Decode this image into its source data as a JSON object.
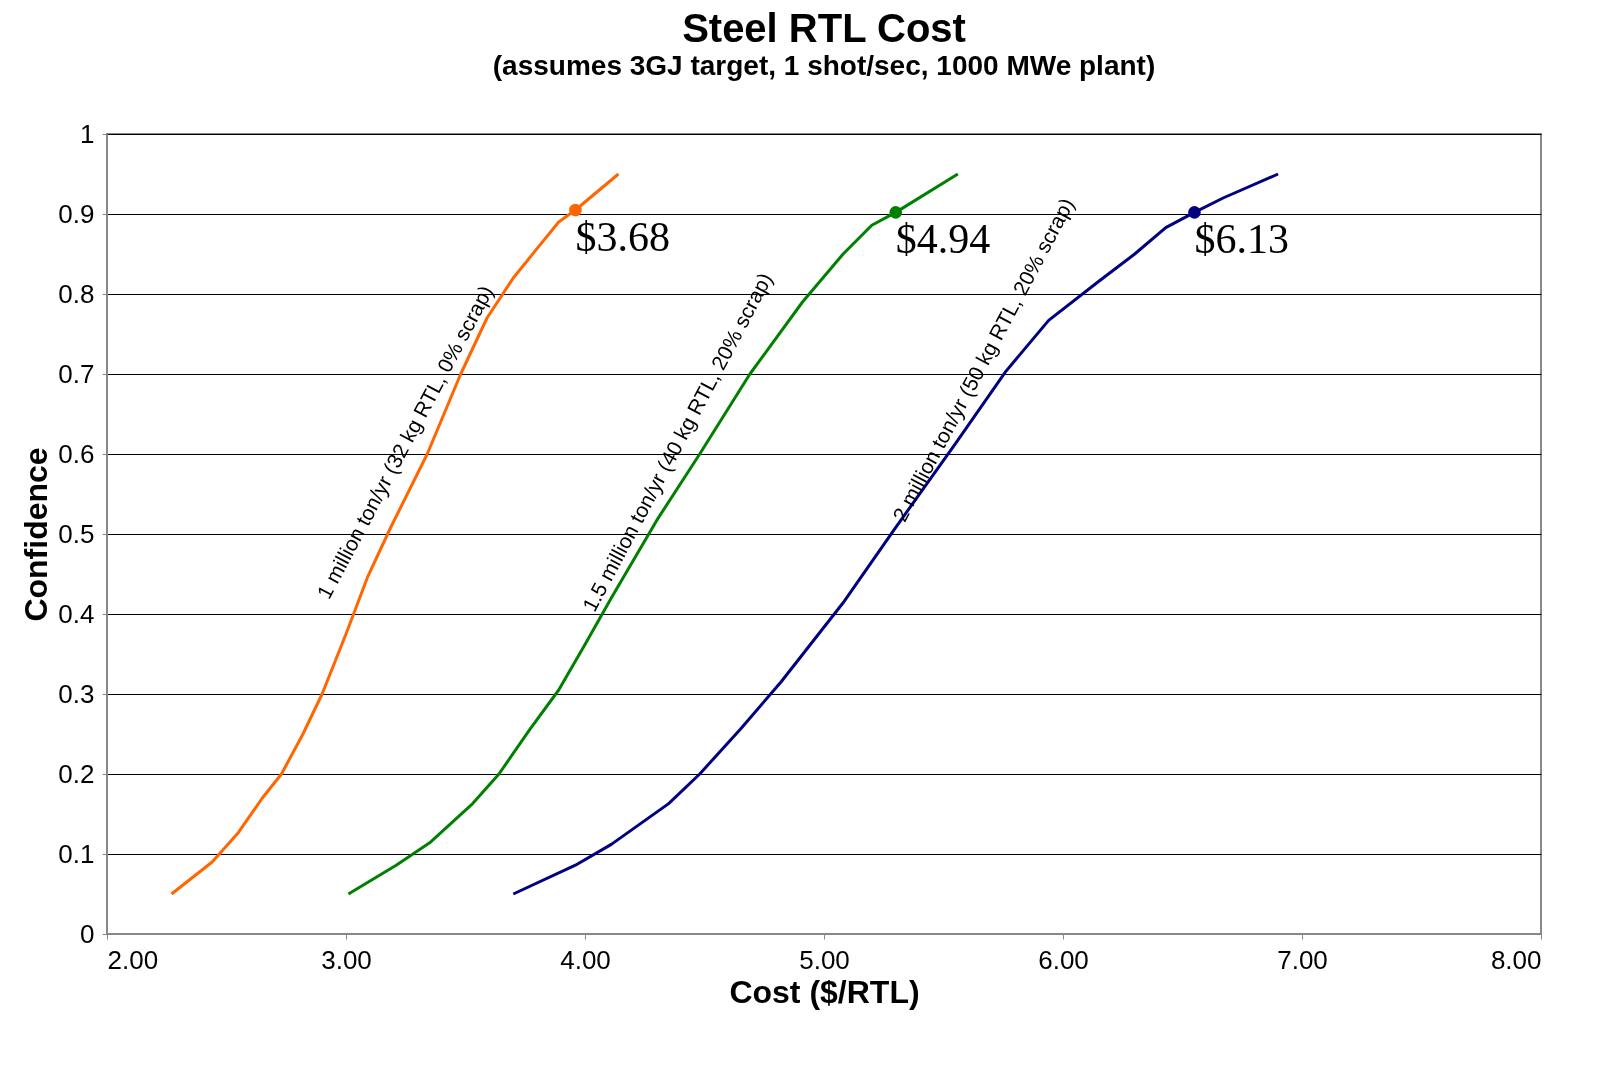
{
  "chart_data": {
    "type": "line",
    "title": "Steel RTL Cost",
    "subtitle": "(assumes 3GJ target, 1 shot/sec, 1000 MWe plant)",
    "xlabel": "Cost ($/RTL)",
    "ylabel": "Confidence",
    "xlim": [
      2,
      8
    ],
    "xticks": [
      {
        "value": 2,
        "label": "2.00"
      },
      {
        "value": 3,
        "label": "3.00"
      },
      {
        "value": 4,
        "label": "4.00"
      },
      {
        "value": 5,
        "label": "5.00"
      },
      {
        "value": 6,
        "label": "6.00"
      },
      {
        "value": 7,
        "label": "7.00"
      },
      {
        "value": 8,
        "label": "8.00"
      }
    ],
    "ylim": [
      0,
      1
    ],
    "yticks": [
      0,
      0.1,
      0.2,
      0.3,
      0.4,
      0.5,
      0.6,
      0.7,
      0.8,
      0.9,
      1
    ],
    "grid": "y",
    "marker": "none",
    "line_style": "solid",
    "series": [
      {
        "name": "1 million ton/yr (32 kg RTL, 0% scrap)",
        "color": "#ff6600",
        "x": [
          2.27,
          2.44,
          2.55,
          2.65,
          2.73,
          2.82,
          2.9,
          3.0,
          3.09,
          3.19,
          3.34,
          3.48,
          3.59,
          3.7,
          3.8,
          3.89,
          3.96,
          4.14
        ],
        "values": [
          0.05,
          0.09,
          0.127,
          0.17,
          0.2,
          0.25,
          0.3,
          0.375,
          0.446,
          0.51,
          0.6,
          0.7,
          0.77,
          0.82,
          0.857,
          0.89,
          0.905,
          0.95
        ]
      },
      {
        "name": "1.5 million ton/yr (40 kg RTL, 20% scrap)",
        "color": "#008000",
        "x": [
          3.01,
          3.21,
          3.35,
          3.53,
          3.64,
          3.77,
          3.89,
          4.0,
          4.11,
          4.3,
          4.48,
          4.69,
          4.91,
          5.08,
          5.2,
          5.3,
          5.56
        ],
        "values": [
          0.05,
          0.086,
          0.114,
          0.163,
          0.2,
          0.256,
          0.305,
          0.362,
          0.42,
          0.517,
          0.6,
          0.7,
          0.79,
          0.85,
          0.886,
          0.902,
          0.95
        ]
      },
      {
        "name": "2 million ton/yr (50 kg RTL, 20% scrap)",
        "color": "#000080",
        "x": [
          3.7,
          3.96,
          4.11,
          4.35,
          4.48,
          4.65,
          4.82,
          5.08,
          5.29,
          5.55,
          5.76,
          5.94,
          6.15,
          6.3,
          6.43,
          6.55,
          6.67,
          6.9
        ],
        "values": [
          0.05,
          0.086,
          0.112,
          0.163,
          0.2,
          0.256,
          0.315,
          0.414,
          0.504,
          0.613,
          0.703,
          0.767,
          0.816,
          0.85,
          0.883,
          0.902,
          0.92,
          0.95
        ]
      },
      {
        "type": "scatter",
        "marker": "circle",
        "color": "#ff6600",
        "x": [
          3.96
        ],
        "values": [
          0.905
        ]
      },
      {
        "type": "scatter",
        "marker": "circle",
        "color": "#008000",
        "x": [
          5.3
        ],
        "values": [
          0.902
        ]
      },
      {
        "type": "scatter",
        "marker": "circle",
        "color": "#000080",
        "x": [
          6.55
        ],
        "values": [
          0.902
        ]
      }
    ],
    "annotations": [
      {
        "text": "$3.68",
        "x": 3.96,
        "y": 0.905
      },
      {
        "text": "$4.94",
        "x": 5.3,
        "y": 0.902
      },
      {
        "text": "$6.13",
        "x": 6.55,
        "y": 0.902
      }
    ]
  }
}
